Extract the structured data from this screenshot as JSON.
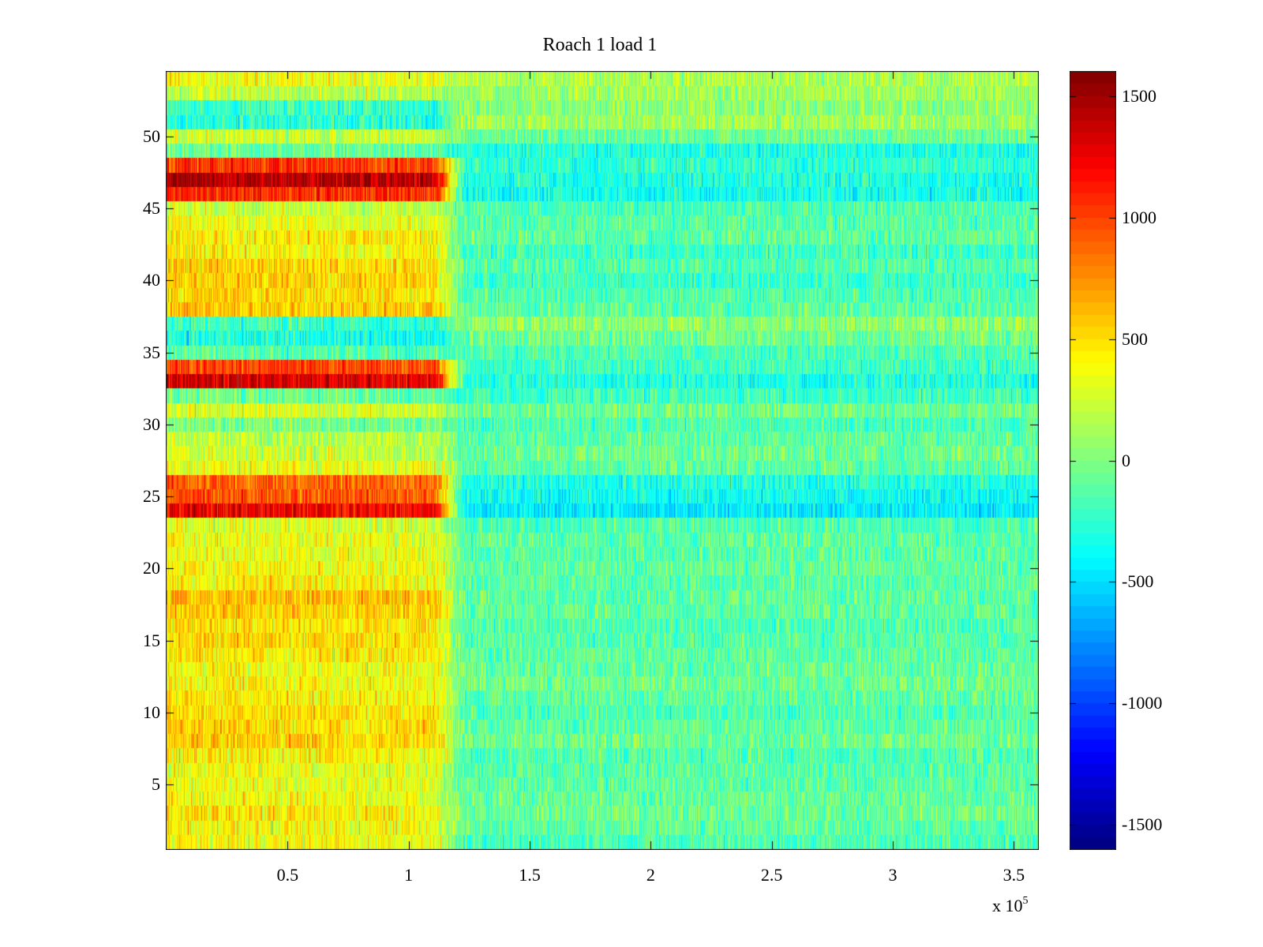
{
  "chart_data": {
    "type": "heatmap",
    "title": "Roach 1 load 1",
    "xlabel": "",
    "ylabel": "",
    "x_exponent_label": "x 10",
    "x_exponent_power": "5",
    "xlim": [
      0,
      3.6
    ],
    "ylim": [
      0.5,
      54.5
    ],
    "x_ticks": [
      {
        "value": 0.5,
        "label": "0.5"
      },
      {
        "value": 1,
        "label": "1"
      },
      {
        "value": 1.5,
        "label": "1.5"
      },
      {
        "value": 2,
        "label": "2"
      },
      {
        "value": 2.5,
        "label": "2.5"
      },
      {
        "value": 3,
        "label": "3"
      },
      {
        "value": 3.5,
        "label": "3.5"
      }
    ],
    "y_ticks": [
      {
        "value": 5,
        "label": "5"
      },
      {
        "value": 10,
        "label": "10"
      },
      {
        "value": 15,
        "label": "15"
      },
      {
        "value": 20,
        "label": "20"
      },
      {
        "value": 25,
        "label": "25"
      },
      {
        "value": 30,
        "label": "30"
      },
      {
        "value": 35,
        "label": "35"
      },
      {
        "value": 40,
        "label": "40"
      },
      {
        "value": 45,
        "label": "45"
      },
      {
        "value": 50,
        "label": "50"
      }
    ],
    "colorbar": {
      "colormap": "jet",
      "clim": [
        -1600,
        1600
      ],
      "ticks": [
        {
          "value": 1500,
          "label": "1500"
        },
        {
          "value": 1000,
          "label": "1000"
        },
        {
          "value": 500,
          "label": "500"
        },
        {
          "value": 0,
          "label": "0"
        },
        {
          "value": -500,
          "label": "-500"
        },
        {
          "value": -1000,
          "label": "-1000"
        },
        {
          "value": -1500,
          "label": "-1500"
        }
      ]
    },
    "rows": 54,
    "transition_x": 1.17,
    "early_row_means": [
      350,
      340,
      420,
      330,
      300,
      320,
      380,
      520,
      480,
      450,
      420,
      360,
      350,
      430,
      480,
      460,
      520,
      580,
      400,
      350,
      320,
      300,
      250,
      1200,
      900,
      850,
      300,
      200,
      150,
      -50,
      250,
      -100,
      1300,
      950,
      -150,
      -350,
      -250,
      550,
      480,
      520,
      500,
      380,
      420,
      300,
      200,
      1050,
      1400,
      1000,
      -100,
      200,
      -300,
      -250,
      150,
      320
    ],
    "late_row_means": [
      -150,
      -100,
      -50,
      -80,
      -100,
      -120,
      -150,
      -50,
      -100,
      -150,
      -100,
      -50,
      -80,
      -100,
      -120,
      -150,
      -100,
      -100,
      -120,
      -80,
      -120,
      -100,
      -150,
      -450,
      -350,
      -300,
      -100,
      -50,
      -100,
      -150,
      -50,
      -200,
      -300,
      -200,
      -150,
      -50,
      50,
      -100,
      -150,
      -200,
      -150,
      -200,
      -100,
      -120,
      -150,
      -350,
      -300,
      -250,
      -300,
      -50,
      100,
      50,
      100,
      150
    ]
  }
}
